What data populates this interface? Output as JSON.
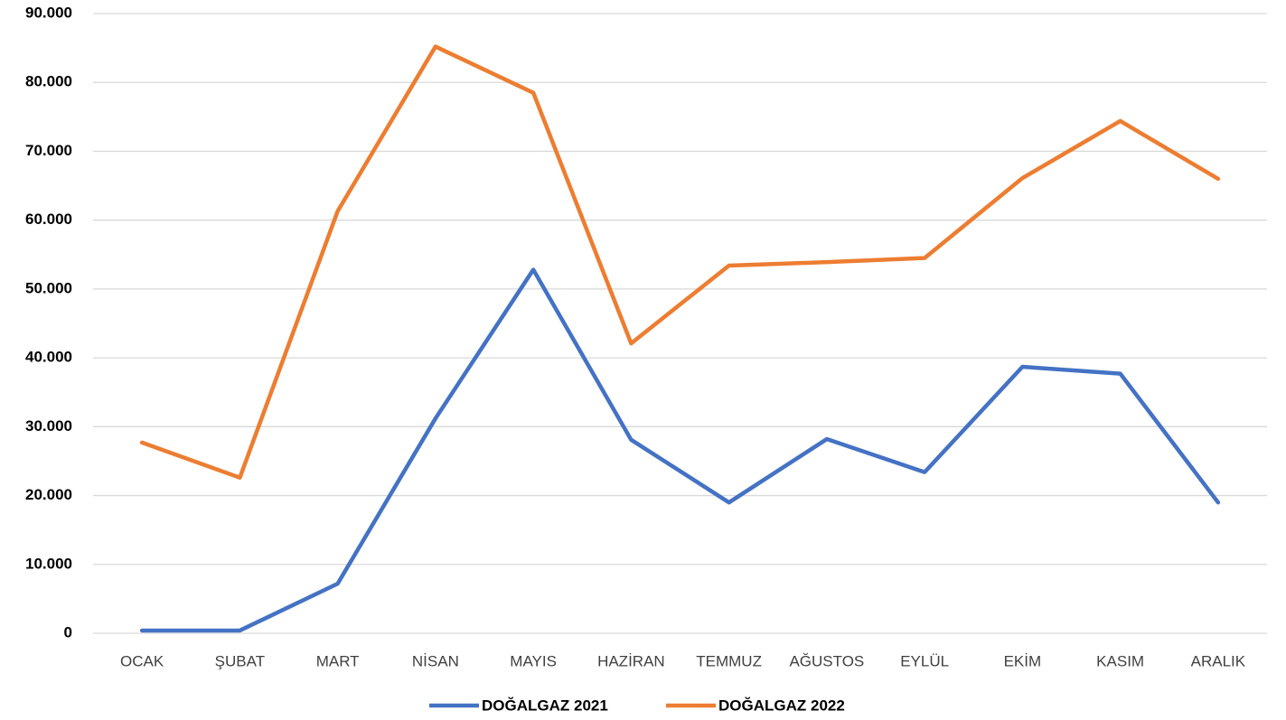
{
  "chart_data": {
    "type": "line",
    "categories": [
      "OCAK",
      "ŞUBAT",
      "MART",
      "NİSAN",
      "MAYIS",
      "HAZİRAN",
      "TEMMUZ",
      "AĞUSTOS",
      "EYLÜL",
      "EKİM",
      "KASIM",
      "ARALIK"
    ],
    "series": [
      {
        "name": "DOĞALGAZ 2021",
        "color": "#4472c4",
        "values": [
          400,
          400,
          7200,
          31200,
          52800,
          28100,
          19000,
          28200,
          23400,
          38700,
          37700,
          19000
        ]
      },
      {
        "name": "DOĞALGAZ 2022",
        "color": "#ed7d31",
        "values": [
          27700,
          22600,
          61300,
          85200,
          78500,
          42100,
          53400,
          53900,
          54500,
          66100,
          74400,
          66000
        ]
      }
    ],
    "ylim": [
      0,
      90000
    ],
    "yticks": [
      0,
      {
        "value": 10000,
        "label": "10.000"
      },
      {
        "value": 20000,
        "label": "20.000"
      },
      {
        "value": 30000,
        "label": "30.000"
      },
      {
        "value": 40000,
        "label": "40.000"
      },
      {
        "value": 50000,
        "label": "50.000"
      },
      {
        "value": 60000,
        "label": "60.000"
      },
      {
        "value": 70000,
        "label": "70.000"
      },
      {
        "value": 80000,
        "label": "80.000"
      },
      {
        "value": 90000,
        "label": "90.000"
      }
    ],
    "grid": true,
    "legend": "bottom"
  }
}
